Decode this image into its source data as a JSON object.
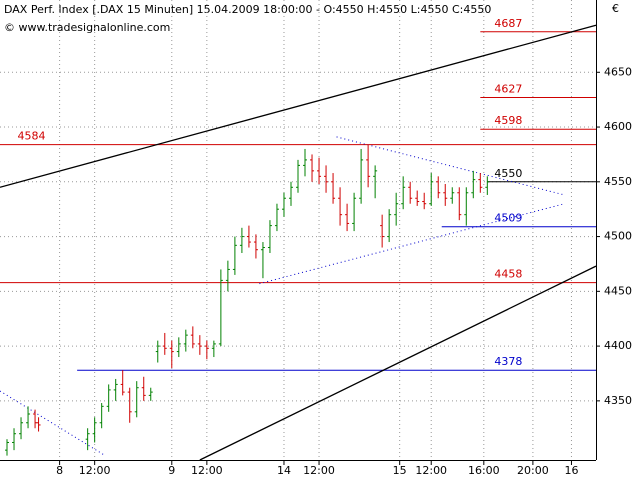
{
  "chart_data": {
    "type": "ohlc",
    "title": "DAX Perf. Index [.DAX  15 Minuten] 15.04.2009 18:00:00 - O:4550 H:4550 L:4550 C:4550",
    "watermark": "© www.tradesignalonline.com",
    "currency": "€",
    "up_color": "#008000",
    "down_color": "#d00000",
    "grid": true,
    "xlim": [
      0,
      170
    ],
    "ylim": [
      4296,
      4716
    ],
    "yticks": [
      4350,
      4400,
      4450,
      4500,
      4550,
      4600,
      4650
    ],
    "xticks": [
      {
        "value": 17,
        "label": "8"
      },
      {
        "value": 27,
        "label": "12:00"
      },
      {
        "value": 49,
        "label": "9"
      },
      {
        "value": 59,
        "label": "12:00"
      },
      {
        "value": 81,
        "label": "14"
      },
      {
        "value": 91,
        "label": "12:00"
      },
      {
        "value": 114,
        "label": "15"
      },
      {
        "value": 123,
        "label": "12:00"
      },
      {
        "value": 138,
        "label": "16:00"
      },
      {
        "value": 152,
        "label": "20:00"
      },
      {
        "value": 163,
        "label": "16"
      }
    ],
    "x": [
      2,
      4,
      6,
      8,
      10,
      11,
      25,
      27,
      29,
      31,
      33,
      35,
      37,
      39,
      41,
      43,
      45,
      47,
      49,
      51,
      53,
      55,
      57,
      59,
      61,
      63,
      65,
      67,
      69,
      71,
      73,
      75,
      77,
      79,
      81,
      83,
      85,
      87,
      89,
      91,
      93,
      95,
      97,
      99,
      101,
      103,
      105,
      107,
      109,
      111,
      113,
      115,
      117,
      119,
      121,
      123,
      125,
      127,
      129,
      131,
      133,
      135,
      137,
      139
    ],
    "open": [
      4305,
      4312,
      4320,
      4330,
      4338,
      4330,
      4315,
      4320,
      4330,
      4345,
      4360,
      4365,
      4358,
      4340,
      4362,
      4355,
      4395,
      4400,
      4398,
      4395,
      4402,
      4410,
      4402,
      4400,
      4398,
      4402,
      4460,
      4470,
      4492,
      4500,
      4495,
      4488,
      4490,
      4510,
      4525,
      4535,
      4545,
      4565,
      4570,
      4560,
      4555,
      4550,
      4535,
      4520,
      4512,
      4535,
      4570,
      4555,
      4510,
      4500,
      4520,
      4530,
      4545,
      4535,
      4532,
      4530,
      4550,
      4540,
      4535,
      4540,
      4520,
      4540,
      4552,
      4545
    ],
    "high": [
      4315,
      4325,
      4335,
      4345,
      4342,
      4335,
      4325,
      4335,
      4348,
      4365,
      4370,
      4378,
      4362,
      4368,
      4372,
      4362,
      4405,
      4412,
      4405,
      4408,
      4415,
      4418,
      4410,
      4405,
      4405,
      4470,
      4478,
      4500,
      4508,
      4510,
      4502,
      4495,
      4515,
      4530,
      4540,
      4550,
      4570,
      4580,
      4575,
      4572,
      4565,
      4558,
      4545,
      4530,
      4540,
      4580,
      4584,
      4565,
      4520,
      4525,
      4540,
      4555,
      4550,
      4542,
      4540,
      4558,
      4555,
      4548,
      4545,
      4545,
      4545,
      4560,
      4558,
      4555
    ],
    "low": [
      4300,
      4305,
      4315,
      4325,
      4325,
      4322,
      4305,
      4312,
      4325,
      4340,
      4350,
      4355,
      4330,
      4335,
      4350,
      4350,
      4385,
      4392,
      4380,
      4390,
      4395,
      4398,
      4392,
      4388,
      4390,
      4400,
      4450,
      4465,
      4485,
      4490,
      4480,
      4462,
      4485,
      4505,
      4518,
      4528,
      4540,
      4555,
      4550,
      4548,
      4540,
      4530,
      4510,
      4505,
      4505,
      4530,
      4545,
      4535,
      4490,
      4495,
      4510,
      4525,
      4530,
      4528,
      4525,
      4528,
      4535,
      4528,
      4530,
      4515,
      4510,
      4535,
      4540,
      4538
    ],
    "close": [
      4312,
      4320,
      4330,
      4338,
      4330,
      4328,
      4320,
      4330,
      4345,
      4360,
      4365,
      4358,
      4340,
      4362,
      4355,
      4358,
      4400,
      4398,
      4395,
      4402,
      4410,
      4402,
      4400,
      4398,
      4402,
      4460,
      4470,
      4492,
      4500,
      4495,
      4488,
      4490,
      4510,
      4525,
      4535,
      4545,
      4565,
      4570,
      4560,
      4555,
      4550,
      4535,
      4520,
      4512,
      4535,
      4570,
      4555,
      4560,
      4500,
      4520,
      4530,
      4545,
      4535,
      4532,
      4530,
      4550,
      4540,
      4535,
      4540,
      4520,
      4540,
      4552,
      4545,
      4550
    ],
    "levels": [
      {
        "value": 4687,
        "color": "#d00000",
        "x0": 137,
        "label_x": 141
      },
      {
        "value": 4627,
        "color": "#d00000",
        "x0": 137,
        "label_x": 141
      },
      {
        "value": 4598,
        "color": "#d00000",
        "x0": 137,
        "label_x": 141
      },
      {
        "value": 4584,
        "color": "#d00000",
        "x0": 0,
        "label_x": 5
      },
      {
        "value": 4550,
        "color": "#000000",
        "x0": 139,
        "label_x": 141
      },
      {
        "value": 4509,
        "color": "#0000cc",
        "x0": 126,
        "label_x": 141
      },
      {
        "value": 4458,
        "color": "#d00000",
        "x0": 0,
        "label_x": 141
      },
      {
        "value": 4378,
        "color": "#0000cc",
        "x0": 22,
        "label_x": 141
      }
    ],
    "trendlines": [
      {
        "x": [
          0,
          170
        ],
        "y": [
          4545,
          4693
        ],
        "color": "#000000",
        "style": "solid"
      },
      {
        "x": [
          57,
          170
        ],
        "y": [
          4296,
          4473
        ],
        "color": "#000000",
        "style": "solid"
      },
      {
        "x": [
          96,
          161
        ],
        "y": [
          4591,
          4538
        ],
        "color": "#0000cc",
        "style": "dotted"
      },
      {
        "x": [
          74,
          161
        ],
        "y": [
          4457,
          4530
        ],
        "color": "#0000cc",
        "style": "dotted"
      },
      {
        "x": [
          0,
          30
        ],
        "y": [
          4359,
          4300
        ],
        "color": "#0000cc",
        "style": "dotted"
      }
    ]
  }
}
